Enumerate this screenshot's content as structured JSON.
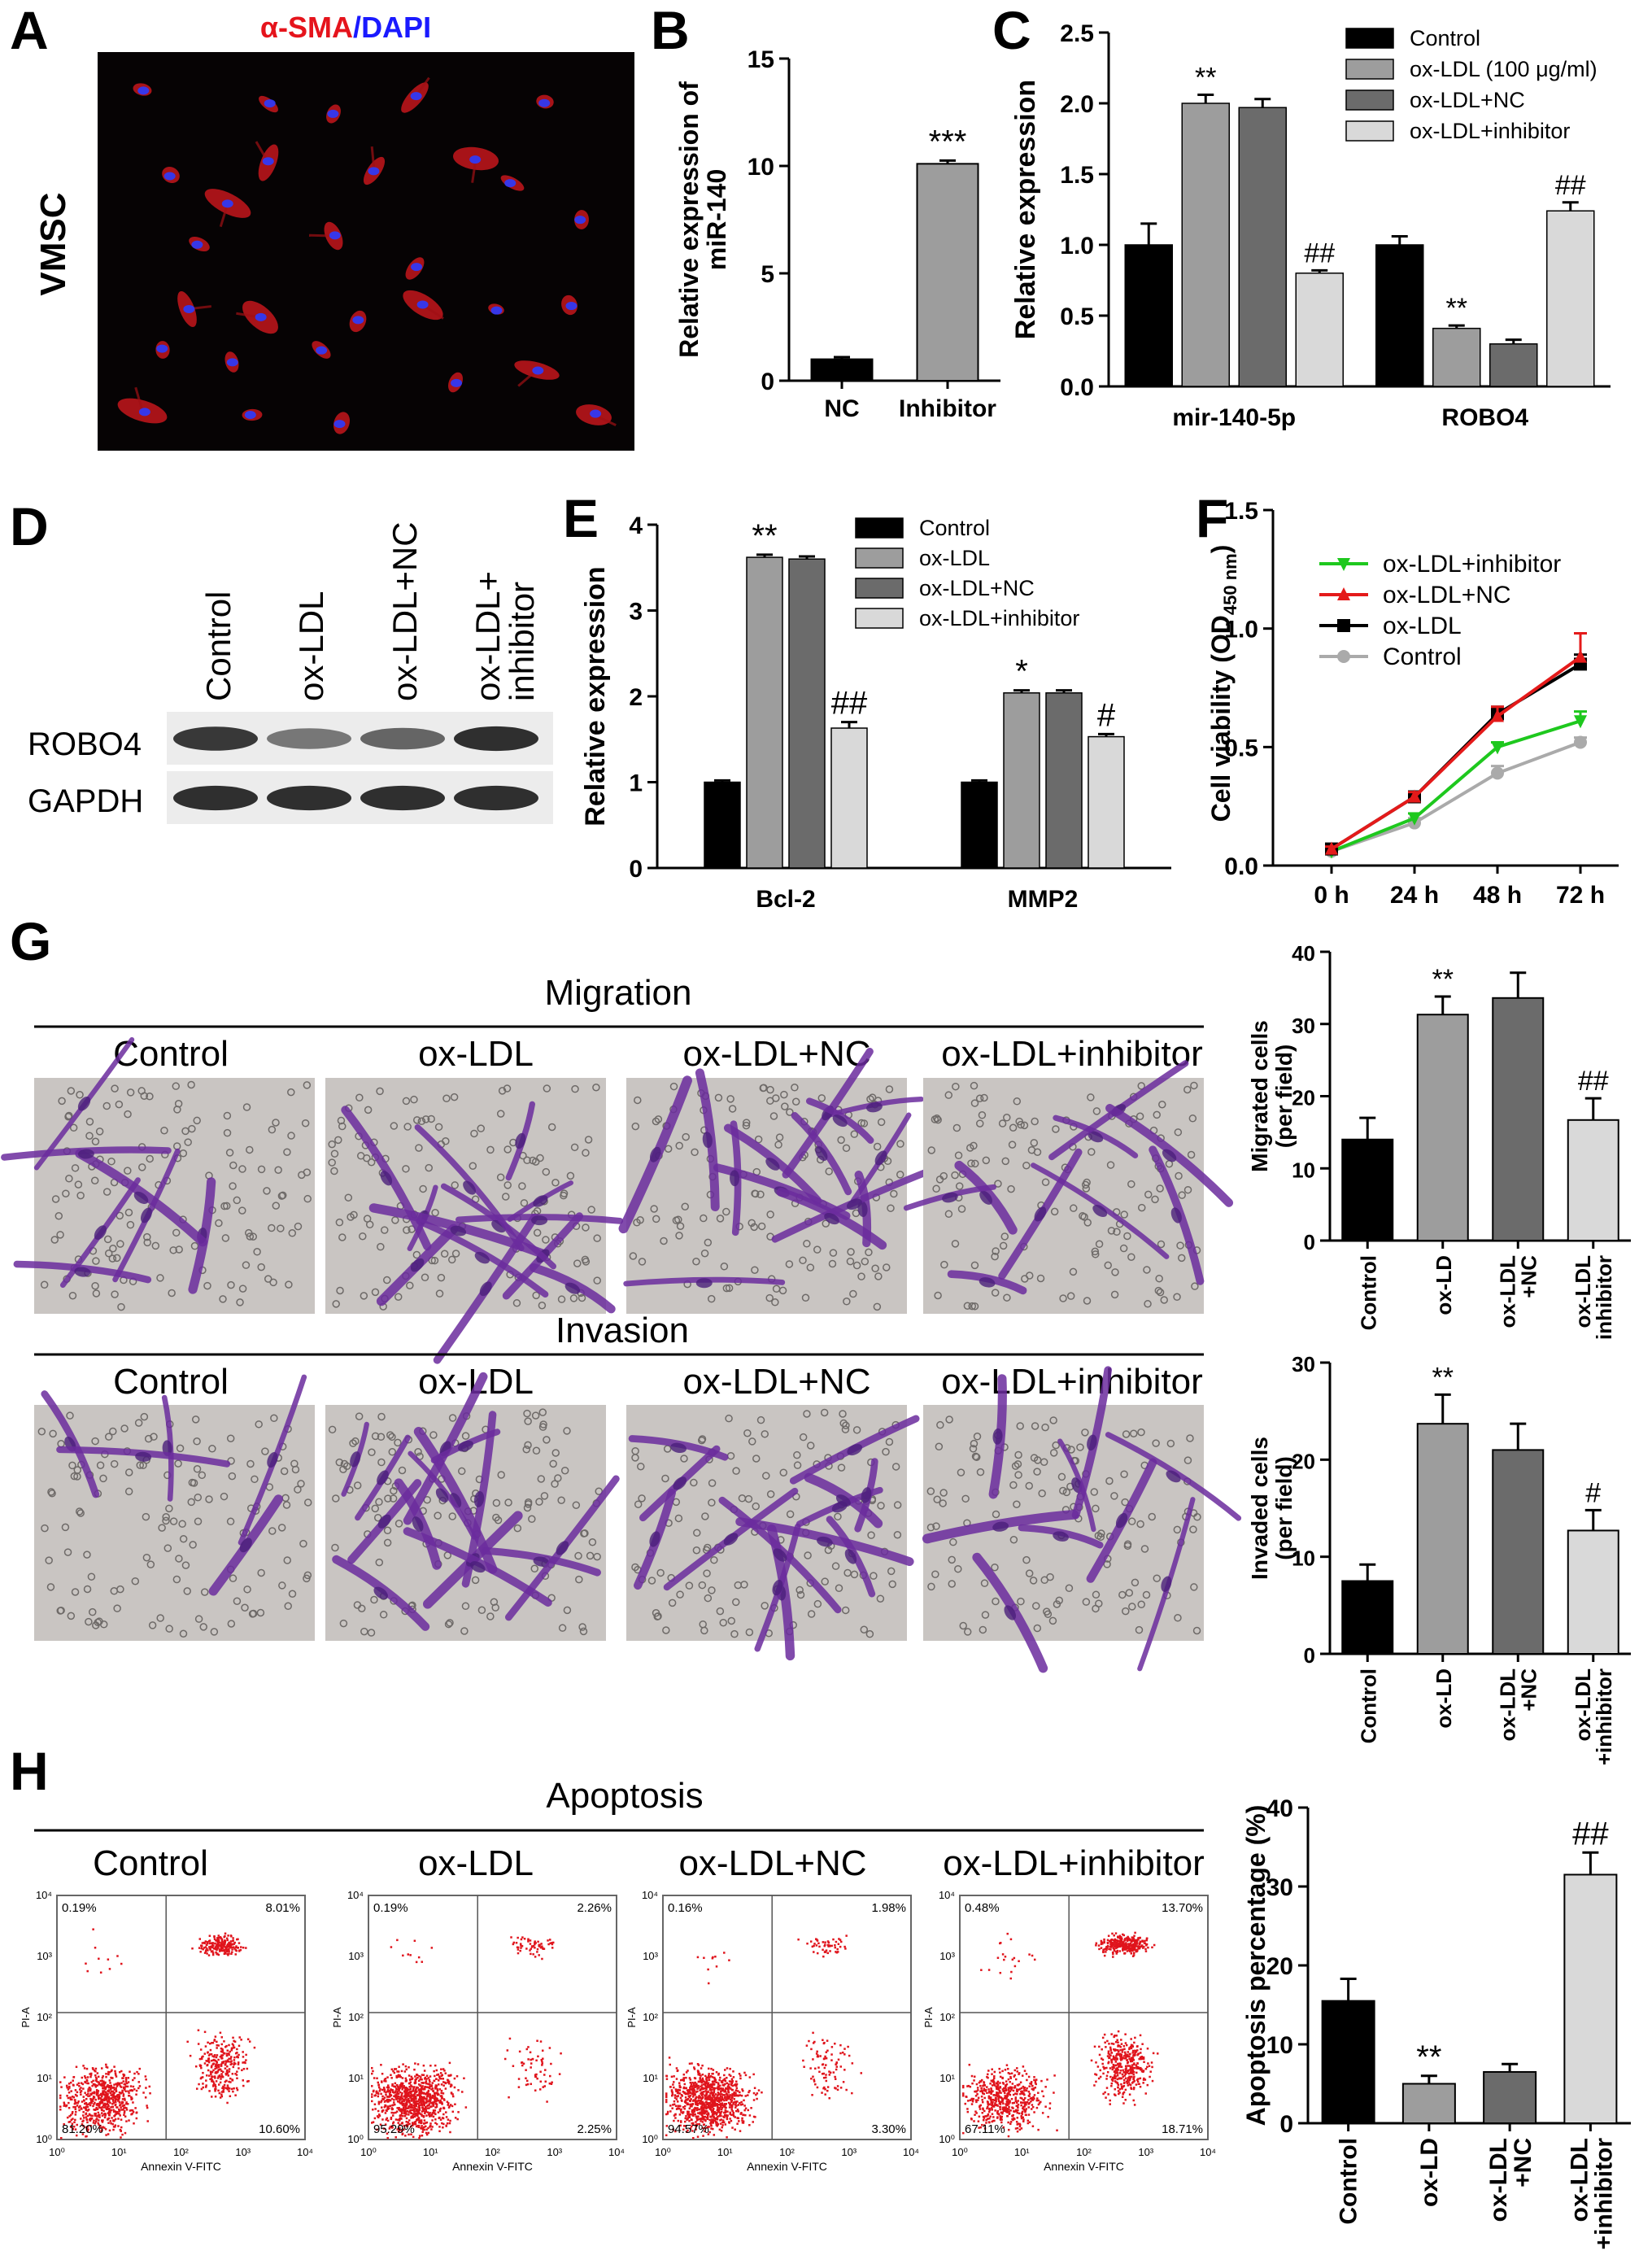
{
  "panels": {
    "A": {
      "letter": "A",
      "stain_red": "α-SMA",
      "stain_sep": "/",
      "stain_blue": "DAPI",
      "side_label": "VMSC",
      "colors": {
        "red": "#e5141c",
        "blue": "#1a1aff",
        "background": "#060304"
      }
    },
    "B": {
      "letter": "B"
    },
    "C": {
      "letter": "C"
    },
    "D": {
      "letter": "D",
      "lanes": [
        "Control",
        "ox-LDL",
        "ox-LDL+NC",
        "ox-LDL+",
        "inhibitor"
      ],
      "rows": [
        "ROBO4",
        "GAPDH"
      ],
      "robo4_intensity": [
        0.8,
        0.45,
        0.55,
        0.85
      ],
      "gapdh_intensity": [
        0.85,
        0.85,
        0.85,
        0.85
      ]
    },
    "E": {
      "letter": "E"
    },
    "F": {
      "letter": "F"
    },
    "G": {
      "letter": "G",
      "migration_title": "Migration",
      "invasion_title": "Invasion",
      "image_labels": [
        "Control",
        "ox-LDL",
        "ox-LDL+NC",
        "ox-LDL+inhibitor"
      ]
    },
    "H": {
      "letter": "H",
      "title": "Apoptosis",
      "plot_labels": [
        "Control",
        "ox-LDL",
        "ox-LDL+NC",
        "ox-LDL+inhibitor"
      ],
      "x_axis_label": "Annexin V-FITC",
      "y_axis_label": "PI-A",
      "decades": [
        "10⁰",
        "10¹",
        "10²",
        "10³",
        "10⁴"
      ],
      "quadrants": [
        {
          "ul": "0.19%",
          "ur": "8.01%",
          "ll": "81.20%",
          "lr": "10.60%"
        },
        {
          "ul": "0.19%",
          "ur": "2.26%",
          "ll": "95.29%",
          "lr": "2.25%"
        },
        {
          "ul": "0.16%",
          "ur": "1.98%",
          "ll": "94.57%",
          "lr": "3.30%"
        },
        {
          "ul": "0.48%",
          "ur": "13.70%",
          "ll": "67.11%",
          "lr": "18.71%"
        }
      ]
    }
  },
  "chart_data": [
    {
      "id": "B",
      "type": "bar",
      "categories": [
        "NC",
        "Inhibitor"
      ],
      "values": [
        1.0,
        10.1
      ],
      "errors": [
        0.1,
        0.15
      ],
      "annotations": [
        "",
        "***"
      ],
      "ylabel": "Relative expression of miR-140",
      "ylim": [
        0,
        15
      ],
      "yticks": [
        0,
        5,
        10,
        15
      ],
      "colors": [
        "#000000",
        "#9d9d9d"
      ]
    },
    {
      "id": "C",
      "type": "bar",
      "categories": [
        "mir-140-5p",
        "ROBO4"
      ],
      "series": [
        {
          "name": "Control",
          "values": [
            1.0,
            1.0
          ],
          "errors": [
            0.15,
            0.06
          ],
          "annotations": [
            "",
            ""
          ],
          "color": "#000000"
        },
        {
          "name": "ox-LDL (100 μg/ml)",
          "values": [
            2.0,
            0.41
          ],
          "errors": [
            0.06,
            0.02
          ],
          "annotations": [
            "**",
            "**"
          ],
          "color": "#9d9d9d"
        },
        {
          "name": "ox-LDL+NC",
          "values": [
            1.97,
            0.3
          ],
          "errors": [
            0.06,
            0.03
          ],
          "annotations": [
            "",
            ""
          ],
          "color": "#6b6b6b"
        },
        {
          "name": "ox-LDL+inhibitor",
          "values": [
            0.8,
            1.24
          ],
          "errors": [
            0.02,
            0.06
          ],
          "annotations": [
            "##",
            "##"
          ],
          "color": "#d9d9d9"
        }
      ],
      "ylabel": "Relative expression",
      "ylim": [
        0,
        2.5
      ],
      "yticks": [
        "0.0",
        "0.5",
        "1.0",
        "1.5",
        "2.0",
        "2.5"
      ]
    },
    {
      "id": "E",
      "type": "bar",
      "categories": [
        "Bcl-2",
        "MMP2"
      ],
      "series": [
        {
          "name": "Control",
          "values": [
            1.0,
            1.0
          ],
          "errors": [
            0.02,
            0.02
          ],
          "annotations": [
            "",
            ""
          ],
          "color": "#000000"
        },
        {
          "name": "ox-LDL",
          "values": [
            3.62,
            2.04
          ],
          "errors": [
            0.03,
            0.03
          ],
          "annotations": [
            "**",
            "*"
          ],
          "color": "#9d9d9d"
        },
        {
          "name": "ox-LDL+NC",
          "values": [
            3.6,
            2.04
          ],
          "errors": [
            0.03,
            0.03
          ],
          "annotations": [
            "",
            ""
          ],
          "color": "#6b6b6b"
        },
        {
          "name": "ox-LDL+inhibitor",
          "values": [
            1.63,
            1.53
          ],
          "errors": [
            0.07,
            0.03
          ],
          "annotations": [
            "##",
            "#"
          ],
          "color": "#d9d9d9"
        }
      ],
      "ylabel": "Relative expression",
      "ylim": [
        0,
        4
      ],
      "yticks": [
        0,
        1,
        2,
        3,
        4
      ]
    },
    {
      "id": "F",
      "type": "line",
      "x": [
        "0 h",
        "24 h",
        "48 h",
        "72 h"
      ],
      "series": [
        {
          "name": "ox-LDL+inhibitor",
          "values": [
            0.06,
            0.2,
            0.5,
            0.61
          ],
          "errors": [
            0.01,
            0.02,
            0.02,
            0.04
          ],
          "color": "#1ec81e",
          "marker": "triangle-down"
        },
        {
          "name": "ox-LDL+NC",
          "values": [
            0.07,
            0.29,
            0.63,
            0.88
          ],
          "errors": [
            0.01,
            0.02,
            0.04,
            0.1
          ],
          "color": "#e41a1a",
          "marker": "triangle-up"
        },
        {
          "name": "ox-LDL",
          "values": [
            0.07,
            0.29,
            0.64,
            0.85
          ],
          "errors": [
            0.01,
            0.02,
            0.03,
            0.04
          ],
          "color": "#000000",
          "marker": "square"
        },
        {
          "name": "Control",
          "values": [
            0.06,
            0.18,
            0.39,
            0.52
          ],
          "errors": [
            0.01,
            0.02,
            0.03,
            0.02
          ],
          "color": "#aaaaaa",
          "marker": "circle"
        }
      ],
      "ylabel": "Cell viability (OD450 nm)",
      "ylim": [
        0,
        1.5
      ],
      "yticks": [
        "0.0",
        "0.5",
        "1.0",
        "1.5"
      ]
    },
    {
      "id": "G1",
      "type": "bar",
      "categories": [
        "Control",
        "ox-LD",
        "ox-LDL +NC",
        "ox-LDL inhibitor"
      ],
      "values": [
        14,
        31.3,
        33.6,
        16.7
      ],
      "errors": [
        3,
        2.5,
        3.5,
        3
      ],
      "annotations": [
        "",
        "**",
        "",
        "##"
      ],
      "ylabel": "Migrated cells (per field)",
      "ylim": [
        0,
        40
      ],
      "yticks": [
        0,
        10,
        20,
        30,
        40
      ],
      "colors": [
        "#000000",
        "#9d9d9d",
        "#6b6b6b",
        "#d9d9d9"
      ]
    },
    {
      "id": "G2",
      "type": "bar",
      "categories": [
        "Control",
        "ox-LD",
        "ox-LDL +NC",
        "ox-LDL +inhibitor"
      ],
      "values": [
        7.5,
        23.7,
        21,
        12.7
      ],
      "errors": [
        1.7,
        3,
        2.7,
        2.1
      ],
      "annotations": [
        "",
        "**",
        "",
        "#"
      ],
      "ylabel": "Invaded cells (per field)",
      "ylim": [
        0,
        30
      ],
      "yticks": [
        0,
        10,
        20,
        30
      ],
      "colors": [
        "#000000",
        "#9d9d9d",
        "#6b6b6b",
        "#d9d9d9"
      ]
    },
    {
      "id": "H",
      "type": "bar",
      "categories": [
        "Control",
        "ox-LD",
        "ox-LDL +NC",
        "ox-LDL +inhibitor"
      ],
      "values": [
        15.5,
        5,
        6.5,
        31.5
      ],
      "errors": [
        2.8,
        1,
        1,
        2.8
      ],
      "annotations": [
        "",
        "**",
        "",
        "##"
      ],
      "ylabel": "Apoptosis percentage (%)",
      "ylim": [
        0,
        40
      ],
      "yticks": [
        0,
        10,
        20,
        30,
        40
      ],
      "colors": [
        "#000000",
        "#9d9d9d",
        "#6b6b6b",
        "#d9d9d9"
      ]
    }
  ]
}
